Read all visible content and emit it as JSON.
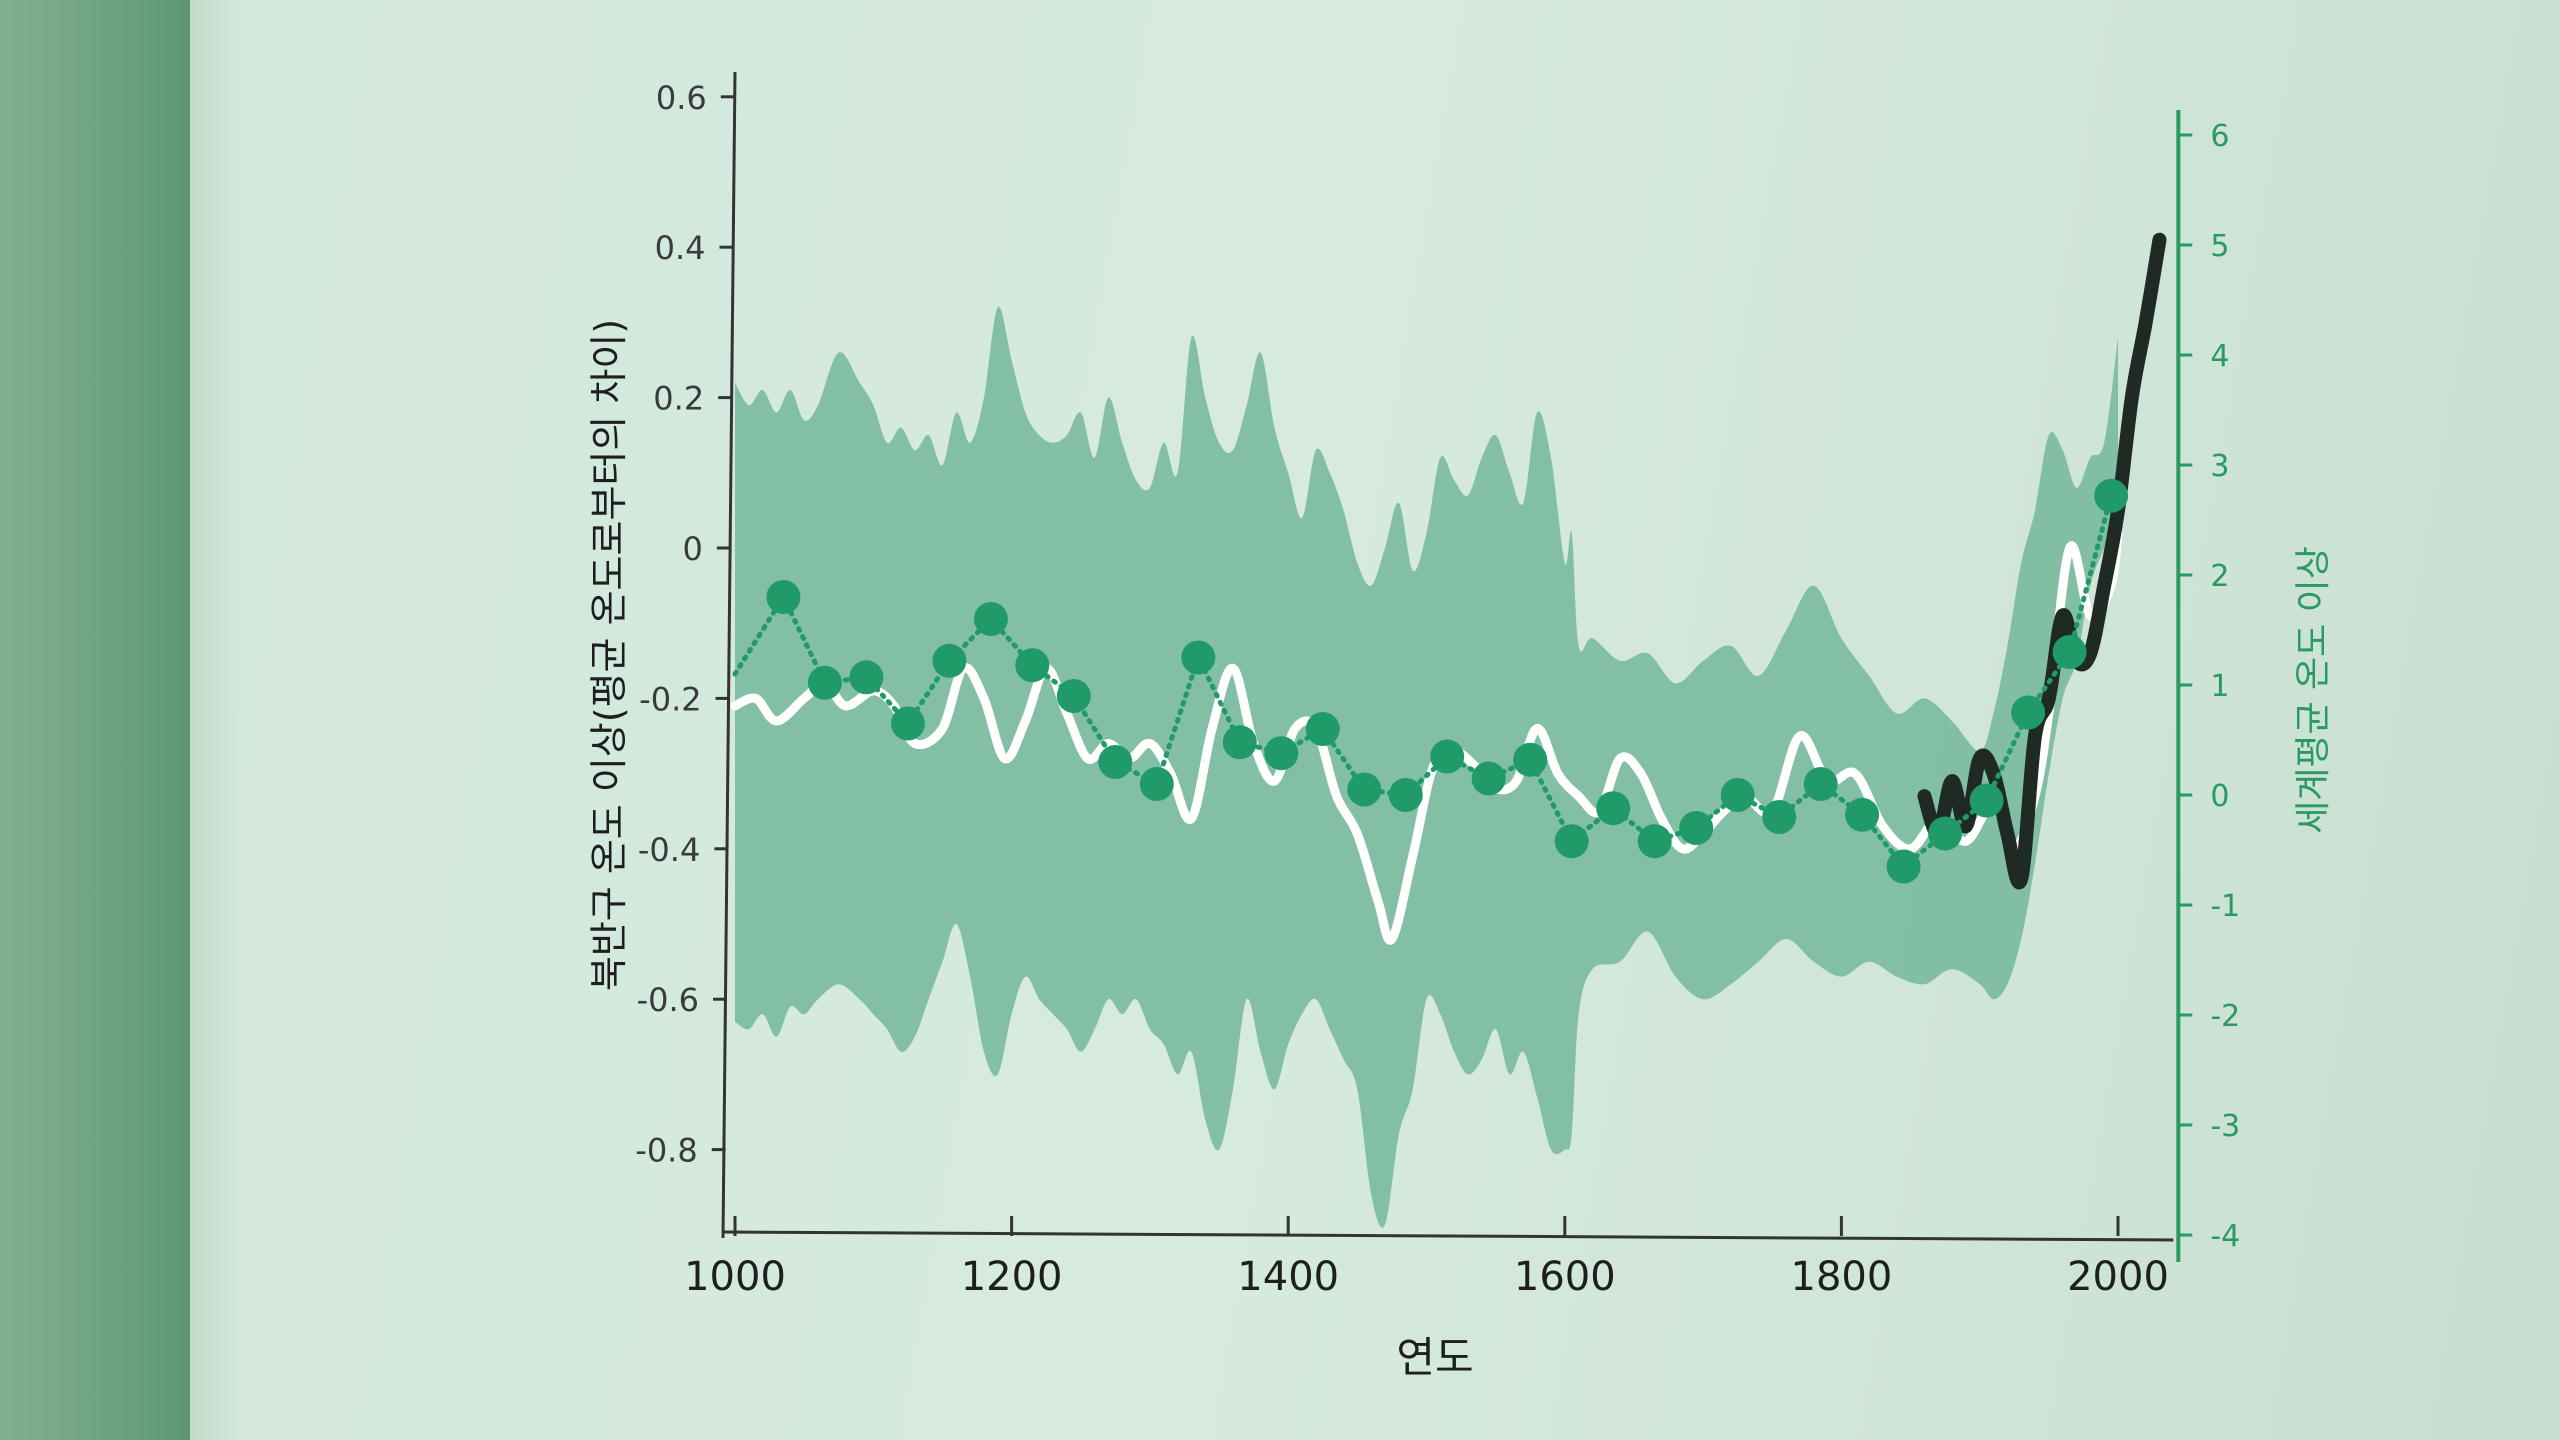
{
  "chart_data": {
    "type": "line",
    "xlabel": "연도",
    "ylabel_left": "북반구 온도 이상(평균 온도로부터의 차이)",
    "ylabel_right": "세계평균 온도 이상",
    "xlim": [
      1000,
      2040
    ],
    "ylim_left": [
      -0.92,
      0.62
    ],
    "ylim_right": [
      -4,
      6
    ],
    "x_ticks": [
      1000,
      1200,
      1400,
      1600,
      1800,
      2000
    ],
    "y_ticks_left": [
      0.6,
      0.4,
      0.2,
      0,
      -0.2,
      -0.4,
      -0.6,
      -0.8
    ],
    "y_ticks_right": [
      6,
      5,
      4,
      3,
      2,
      1,
      0,
      -1,
      -2,
      -3,
      -4
    ],
    "colors": {
      "band": "#74b79a",
      "reconstruction": "#ffffff",
      "instrumental": "#1f2a24",
      "dots": "#1f9a68",
      "right_axis": "#2a9a62",
      "left_axis": "#333333"
    },
    "series": [
      {
        "kind": "band",
        "axis": "left",
        "x": [
          1000,
          1010,
          1020,
          1030,
          1040,
          1050,
          1060,
          1075,
          1090,
          1100,
          1110,
          1120,
          1130,
          1140,
          1150,
          1160,
          1170,
          1180,
          1190,
          1200,
          1210,
          1220,
          1230,
          1240,
          1250,
          1260,
          1270,
          1280,
          1290,
          1300,
          1310,
          1320,
          1330,
          1340,
          1350,
          1360,
          1370,
          1380,
          1390,
          1400,
          1410,
          1420,
          1430,
          1440,
          1450,
          1460,
          1470,
          1480,
          1490,
          1500,
          1510,
          1520,
          1530,
          1540,
          1550,
          1560,
          1570,
          1580,
          1590,
          1600,
          1605,
          1610,
          1620,
          1640,
          1660,
          1680,
          1700,
          1720,
          1740,
          1760,
          1780,
          1800,
          1820,
          1840,
          1860,
          1880,
          1900,
          1910,
          1920,
          1930,
          1940,
          1950,
          1960,
          1970,
          1980,
          1990,
          2000
        ],
        "upper": [
          0.22,
          0.19,
          0.21,
          0.18,
          0.21,
          0.17,
          0.19,
          0.26,
          0.22,
          0.19,
          0.14,
          0.16,
          0.13,
          0.15,
          0.11,
          0.18,
          0.14,
          0.2,
          0.32,
          0.25,
          0.18,
          0.15,
          0.14,
          0.15,
          0.18,
          0.12,
          0.2,
          0.14,
          0.09,
          0.08,
          0.14,
          0.1,
          0.28,
          0.2,
          0.14,
          0.13,
          0.19,
          0.26,
          0.16,
          0.1,
          0.04,
          0.13,
          0.1,
          0.05,
          -0.02,
          -0.05,
          0.0,
          0.06,
          -0.03,
          0.02,
          0.12,
          0.09,
          0.07,
          0.12,
          0.15,
          0.1,
          0.06,
          0.18,
          0.12,
          -0.02,
          0.02,
          -0.13,
          -0.12,
          -0.15,
          -0.14,
          -0.18,
          -0.15,
          -0.13,
          -0.17,
          -0.11,
          -0.05,
          -0.12,
          -0.17,
          -0.22,
          -0.2,
          -0.23,
          -0.27,
          -0.22,
          -0.13,
          -0.02,
          0.05,
          0.15,
          0.13,
          0.08,
          0.12,
          0.14,
          0.28
        ],
        "lower": [
          -0.63,
          -0.64,
          -0.62,
          -0.65,
          -0.61,
          -0.62,
          -0.6,
          -0.58,
          -0.6,
          -0.62,
          -0.64,
          -0.67,
          -0.65,
          -0.6,
          -0.55,
          -0.5,
          -0.57,
          -0.67,
          -0.7,
          -0.62,
          -0.57,
          -0.6,
          -0.62,
          -0.64,
          -0.67,
          -0.64,
          -0.6,
          -0.62,
          -0.6,
          -0.64,
          -0.66,
          -0.7,
          -0.67,
          -0.76,
          -0.8,
          -0.72,
          -0.6,
          -0.67,
          -0.72,
          -0.66,
          -0.62,
          -0.6,
          -0.64,
          -0.68,
          -0.72,
          -0.86,
          -0.9,
          -0.78,
          -0.72,
          -0.6,
          -0.62,
          -0.67,
          -0.7,
          -0.68,
          -0.64,
          -0.7,
          -0.67,
          -0.73,
          -0.8,
          -0.8,
          -0.78,
          -0.62,
          -0.56,
          -0.55,
          -0.51,
          -0.57,
          -0.6,
          -0.58,
          -0.55,
          -0.52,
          -0.55,
          -0.57,
          -0.55,
          -0.57,
          -0.58,
          -0.56,
          -0.58,
          -0.6,
          -0.58,
          -0.52,
          -0.42,
          -0.3,
          -0.2,
          -0.15,
          -0.05,
          0.0,
          0.05
        ]
      },
      {
        "kind": "line",
        "axis": "left",
        "x": [
          1000,
          1015,
          1030,
          1050,
          1065,
          1080,
          1100,
          1115,
          1130,
          1150,
          1165,
          1180,
          1195,
          1210,
          1225,
          1240,
          1255,
          1270,
          1285,
          1300,
          1315,
          1330,
          1345,
          1360,
          1375,
          1390,
          1405,
          1420,
          1435,
          1450,
          1465,
          1475,
          1490,
          1505,
          1520,
          1535,
          1550,
          1565,
          1580,
          1595,
          1610,
          1625,
          1640,
          1655,
          1670,
          1685,
          1700,
          1715,
          1730,
          1750,
          1770,
          1790,
          1810,
          1830,
          1850,
          1870,
          1890,
          1910,
          1925,
          1940,
          1950,
          1965,
          1980,
          1995,
          2000
        ],
        "y": [
          -0.21,
          -0.2,
          -0.23,
          -0.2,
          -0.18,
          -0.21,
          -0.19,
          -0.21,
          -0.26,
          -0.24,
          -0.16,
          -0.2,
          -0.28,
          -0.23,
          -0.16,
          -0.22,
          -0.28,
          -0.26,
          -0.28,
          -0.26,
          -0.3,
          -0.36,
          -0.24,
          -0.16,
          -0.26,
          -0.31,
          -0.24,
          -0.24,
          -0.33,
          -0.38,
          -0.47,
          -0.52,
          -0.41,
          -0.29,
          -0.27,
          -0.29,
          -0.32,
          -0.31,
          -0.24,
          -0.3,
          -0.33,
          -0.35,
          -0.28,
          -0.3,
          -0.36,
          -0.4,
          -0.38,
          -0.35,
          -0.33,
          -0.35,
          -0.25,
          -0.31,
          -0.3,
          -0.37,
          -0.4,
          -0.36,
          -0.39,
          -0.34,
          -0.4,
          -0.33,
          -0.22,
          -0.0,
          -0.09,
          -0.05,
          0.02
        ]
      },
      {
        "kind": "line",
        "axis": "left",
        "x": [
          1860,
          1870,
          1880,
          1890,
          1900,
          1910,
          1920,
          1930,
          1940,
          1950,
          1960,
          1970,
          1980,
          1990,
          2000,
          2010,
          2020,
          2030
        ],
        "y": [
          -0.33,
          -0.38,
          -0.31,
          -0.37,
          -0.28,
          -0.3,
          -0.38,
          -0.44,
          -0.25,
          -0.2,
          -0.09,
          -0.15,
          -0.14,
          -0.05,
          0.05,
          0.2,
          0.3,
          0.41
        ]
      },
      {
        "kind": "dots",
        "axis": "right",
        "x": [
          1035,
          1065,
          1095,
          1125,
          1155,
          1185,
          1215,
          1245,
          1275,
          1305,
          1335,
          1365,
          1395,
          1425,
          1455,
          1485,
          1515,
          1545,
          1575,
          1605,
          1635,
          1665,
          1695,
          1725,
          1755,
          1785,
          1815,
          1845,
          1875,
          1905,
          1935,
          1965,
          1995
        ],
        "y": [
          1.8,
          1.02,
          1.07,
          0.65,
          1.22,
          1.6,
          1.18,
          0.9,
          0.3,
          0.1,
          1.25,
          0.48,
          0.38,
          0.6,
          0.05,
          0.0,
          0.35,
          0.15,
          0.32,
          -0.42,
          -0.12,
          -0.42,
          -0.3,
          0.0,
          -0.2,
          0.1,
          -0.18,
          -0.65,
          -0.35,
          -0.05,
          0.75,
          1.3,
          2.72
        ],
        "line_extension": [
          [
            1000,
            1.1
          ]
        ]
      }
    ]
  }
}
